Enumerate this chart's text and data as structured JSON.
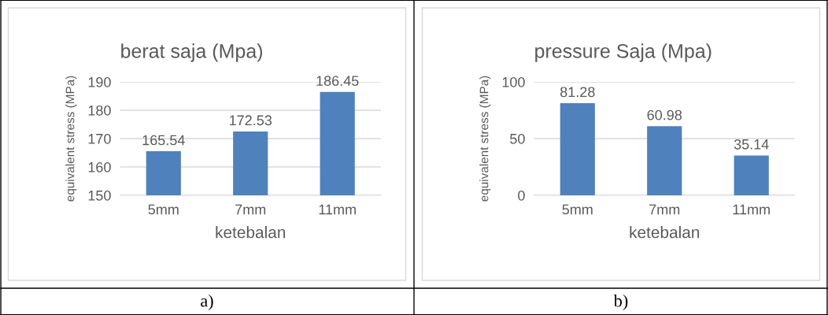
{
  "chart_data": [
    {
      "type": "bar",
      "title": "berat saja (Mpa)",
      "xlabel": "ketebalan",
      "ylabel": "equivalent stress (MPa)",
      "categories": [
        "5mm",
        "7mm",
        "11mm"
      ],
      "values": [
        165.54,
        172.53,
        186.45
      ],
      "color": "#4f81bd",
      "ylim": [
        150,
        190
      ],
      "yticks": [
        150,
        160,
        170,
        180,
        190
      ],
      "grid": "y",
      "data_labels": true,
      "annotations": [
        "a)"
      ]
    },
    {
      "type": "bar",
      "title": "pressure Saja (Mpa)",
      "xlabel": "ketebalan",
      "ylabel": "equivalent stress (MPa)",
      "categories": [
        "5mm",
        "7mm",
        "11mm"
      ],
      "values": [
        81.28,
        60.98,
        35.14
      ],
      "color": "#4f81bd",
      "ylim": [
        0,
        100
      ],
      "yticks": [
        0,
        50,
        100
      ],
      "grid": "y",
      "data_labels": true,
      "annotations": [
        "b)"
      ]
    }
  ]
}
